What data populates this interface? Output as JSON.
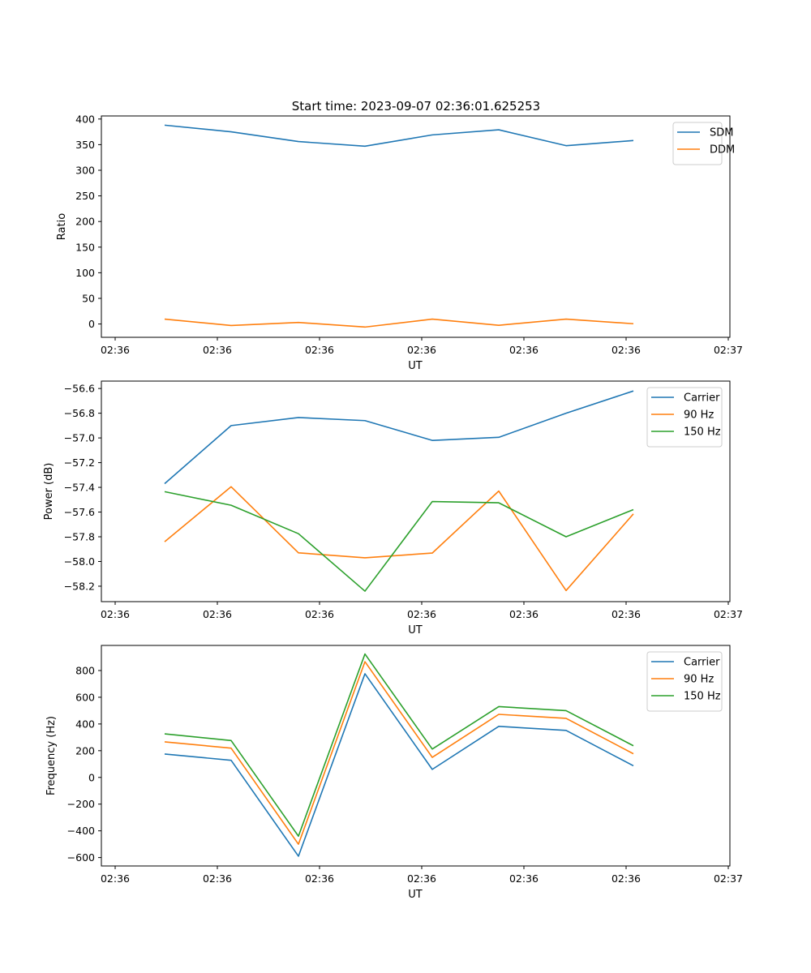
{
  "title": "Start time: 2023-09-07 02:36:01.625253",
  "colors": {
    "blue": "#1f77b4",
    "orange": "#ff7f0e",
    "green": "#2ca02c"
  },
  "chart_data": [
    {
      "type": "line",
      "title": "Start time: 2023-09-07 02:36:01.625253",
      "xlabel": "UT",
      "ylabel": "Ratio",
      "x_ticks": [
        "02:36",
        "02:36",
        "02:36",
        "02:36",
        "02:36",
        "02:36",
        "02:36",
        "02:37"
      ],
      "y_ticks": [
        "0",
        "50",
        "100",
        "150",
        "200",
        "250",
        "300",
        "350",
        "400"
      ],
      "y_tick_values": [
        0,
        50,
        100,
        150,
        200,
        250,
        300,
        350,
        400
      ],
      "ylim": [
        -26,
        406
      ],
      "legend_position": "upper-right",
      "series": [
        {
          "name": "SDM",
          "color": "#1f77b4",
          "values": [
            388,
            375,
            356,
            347,
            369,
            379,
            348,
            358
          ]
        },
        {
          "name": "DDM",
          "color": "#ff7f0e",
          "values": [
            9.5,
            -3,
            3,
            -6,
            9.5,
            -2.5,
            9.5,
            0.5
          ]
        }
      ]
    },
    {
      "type": "line",
      "title": "",
      "xlabel": "UT",
      "ylabel": "Power (dB)",
      "x_ticks": [
        "02:36",
        "02:36",
        "02:36",
        "02:36",
        "02:36",
        "02:36",
        "02:36",
        "02:37"
      ],
      "y_ticks": [
        "−58.2",
        "−58.0",
        "−57.8",
        "−57.6",
        "−57.4",
        "−57.2",
        "−57.0",
        "−56.8",
        "−56.6"
      ],
      "y_tick_values": [
        -58.2,
        -58.0,
        -57.8,
        -57.6,
        -57.4,
        -57.2,
        -57.0,
        -56.8,
        -56.6
      ],
      "ylim": [
        -58.325,
        -56.54
      ],
      "legend_position": "upper-right",
      "series": [
        {
          "name": "Carrier",
          "color": "#1f77b4",
          "values": [
            -57.37,
            -56.9,
            -56.835,
            -56.86,
            -57.02,
            -56.995,
            -56.8,
            -56.62
          ]
        },
        {
          "name": "90 Hz",
          "color": "#ff7f0e",
          "values": [
            -57.84,
            -57.395,
            -57.93,
            -57.97,
            -57.932,
            -57.43,
            -58.235,
            -57.615
          ]
        },
        {
          "name": "150 Hz",
          "color": "#2ca02c",
          "values": [
            -57.435,
            -57.545,
            -57.775,
            -58.24,
            -57.515,
            -57.525,
            -57.8,
            -57.58
          ]
        }
      ]
    },
    {
      "type": "line",
      "title": "",
      "xlabel": "UT",
      "ylabel": "Frequency (Hz)",
      "x_ticks": [
        "02:36",
        "02:36",
        "02:36",
        "02:36",
        "02:36",
        "02:36",
        "02:36",
        "02:37"
      ],
      "y_ticks": [
        "−600",
        "−400",
        "−200",
        "0",
        "200",
        "400",
        "600",
        "800"
      ],
      "y_tick_values": [
        -600,
        -400,
        -200,
        0,
        200,
        400,
        600,
        800
      ],
      "ylim": [
        -663,
        988
      ],
      "legend_position": "upper-right",
      "series": [
        {
          "name": "Carrier",
          "color": "#1f77b4",
          "values": [
            175,
            128,
            -590,
            776,
            60,
            382,
            352,
            87
          ]
        },
        {
          "name": "90 Hz",
          "color": "#ff7f0e",
          "values": [
            266,
            219,
            -500,
            866,
            150,
            472,
            442,
            177
          ]
        },
        {
          "name": "150 Hz",
          "color": "#2ca02c",
          "values": [
            326,
            276,
            -440,
            924,
            212,
            530,
            500,
            237
          ]
        }
      ]
    }
  ]
}
